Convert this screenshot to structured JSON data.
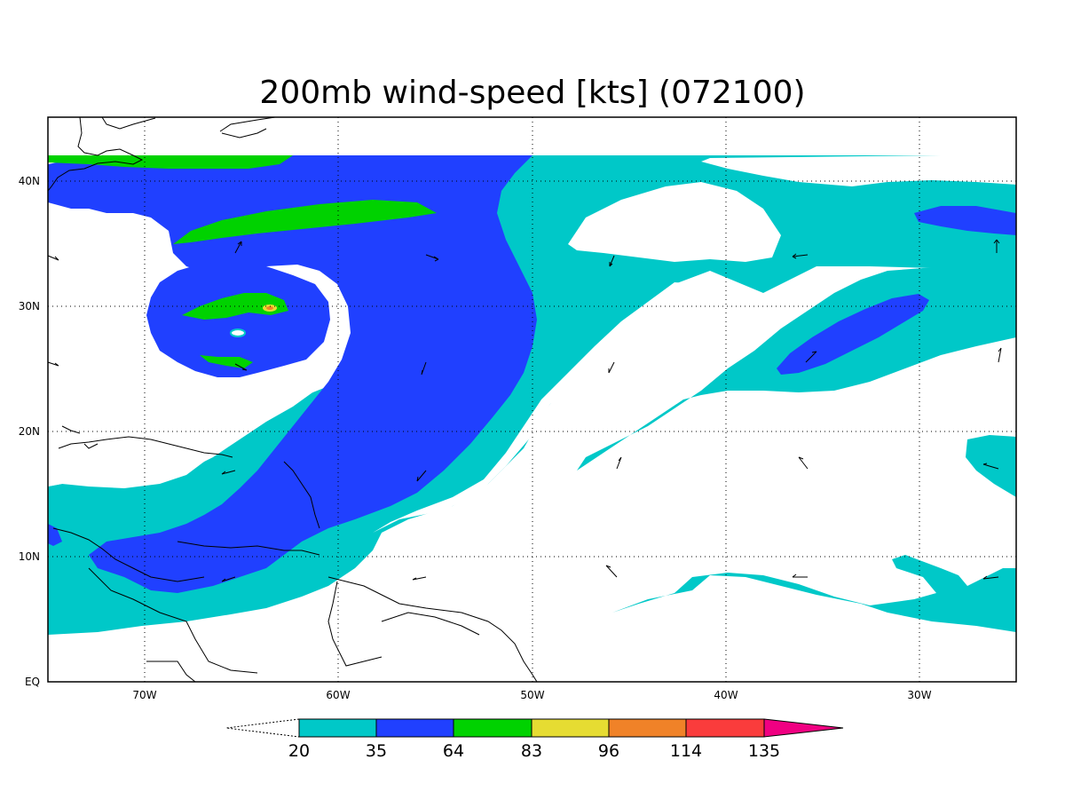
{
  "title": "200mb wind-speed [kts] (072100)",
  "axes": {
    "x_ticks": [
      "70W",
      "60W",
      "50W",
      "40W",
      "30W"
    ],
    "y_ticks": [
      "EQ",
      "10N",
      "20N",
      "30N",
      "40N"
    ]
  },
  "colorbar": {
    "labels": [
      "20",
      "35",
      "64",
      "83",
      "96",
      "114",
      "135"
    ],
    "colors": [
      "#00c8c8",
      "#2040ff",
      "#00d200",
      "#e6dc32",
      "#f08228",
      "#fa3c3c",
      "#f00082"
    ]
  },
  "fill_colors": {
    "cyan": "#00c8c8",
    "blue": "#2040ff",
    "green": "#00d200",
    "yellow": "#e6dc32",
    "orange": "#f08228"
  }
}
